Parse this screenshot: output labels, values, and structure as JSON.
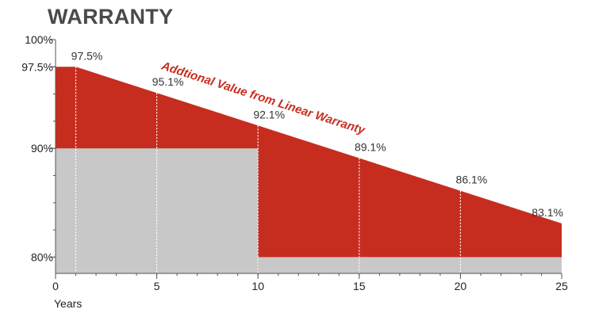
{
  "chart_data": {
    "type": "area",
    "title": "WARRANTY",
    "xlabel": "Years",
    "ylabel": "",
    "xlim": [
      0,
      25
    ],
    "ylim": [
      78.5,
      100
    ],
    "x_ticks": [
      "0",
      "5",
      "10",
      "15",
      "20",
      "25"
    ],
    "y_ticks": [
      {
        "value": 100,
        "label": "100%"
      },
      {
        "value": 97.5,
        "label": "97.5%"
      },
      {
        "value": 90,
        "label": "90%"
      },
      {
        "value": 80,
        "label": "80%"
      }
    ],
    "linear_warranty": {
      "x": [
        0,
        1,
        5,
        10,
        15,
        20,
        25
      ],
      "y": [
        97.5,
        97.5,
        95.1,
        92.1,
        89.1,
        86.1,
        83.1
      ]
    },
    "step_warranty": {
      "segments": [
        {
          "x_start": 0,
          "x_end": 10,
          "y": 90
        },
        {
          "x_start": 10,
          "x_end": 25,
          "y": 80
        }
      ]
    },
    "data_labels": [
      {
        "x": 1,
        "y": 97.5,
        "label": "97.5%"
      },
      {
        "x": 5,
        "y": 95.1,
        "label": "95.1%"
      },
      {
        "x": 10,
        "y": 92.1,
        "label": "92.1%"
      },
      {
        "x": 15,
        "y": 89.1,
        "label": "89.1%"
      },
      {
        "x": 20,
        "y": 86.1,
        "label": "86.1%"
      },
      {
        "x": 25,
        "y": 83.1,
        "label": "83.1%"
      }
    ],
    "annotation": "Addtional Value from Linear Warranty",
    "grid": false,
    "colors": {
      "linear_area": "#c62d1f",
      "step_area": "#c8c8c8",
      "annotation": "#c62d1f",
      "marker_lines": "#ffffff"
    }
  }
}
